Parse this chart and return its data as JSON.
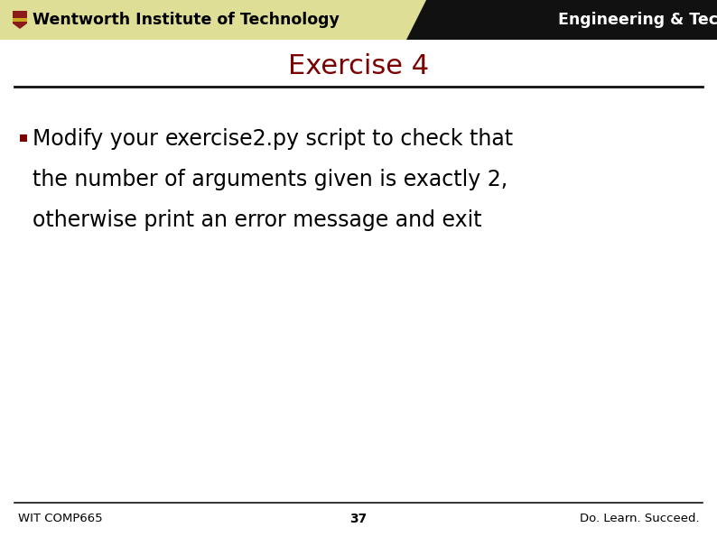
{
  "header_left_text": "Wentworth Institute of Technology",
  "header_right_text": "Engineering & Technology",
  "header_left_bg": "#dede96",
  "header_right_bg": "#111111",
  "header_right_text_color": "#ffffff",
  "header_left_text_color": "#000000",
  "title": "Exercise 4",
  "title_color": "#7b0000",
  "separator_color": "#111111",
  "bullet_color": "#7b0000",
  "bullet_text_pre": "Modify your ",
  "bullet_code": "exercise2.py",
  "bullet_text_post": " script to check that",
  "bullet_text_line2": "the number of arguments given is exactly 2,",
  "bullet_text_line3": "otherwise print an error message and exit",
  "body_text_color": "#000000",
  "footer_left": "WIT COMP665",
  "footer_center": "37",
  "footer_right": "Do. Learn. Succeed.",
  "footer_color": "#000000",
  "bg_color": "#ffffff",
  "footer_line_color": "#111111"
}
